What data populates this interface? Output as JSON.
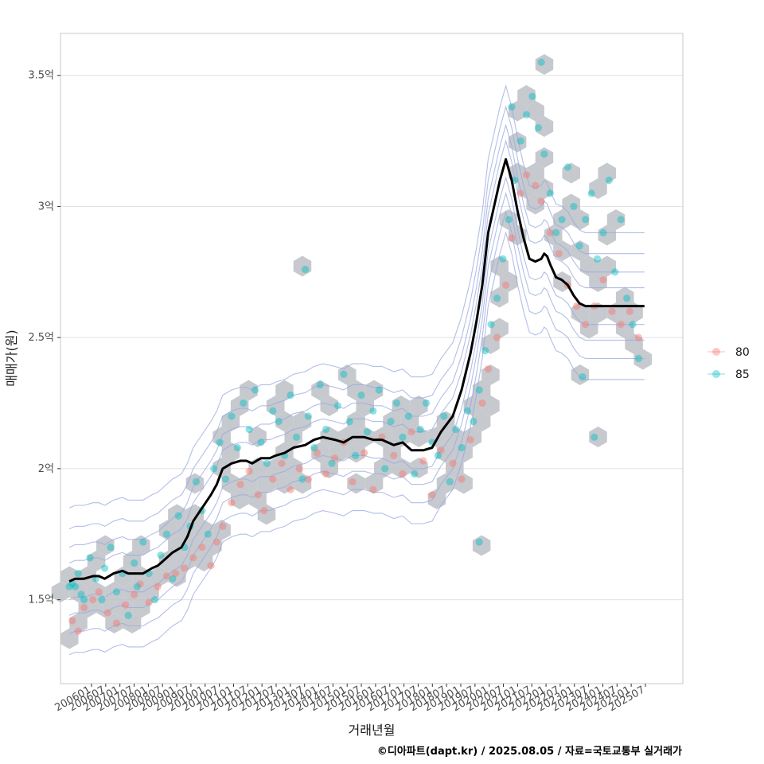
{
  "chart_data": {
    "type": "scatter",
    "title": "",
    "xlabel": "거래년월",
    "ylabel": "매매가(원)",
    "caption": "©디아파트(dapt.kr) / 2025.08.05 / 자료=국토교통부 실거래가",
    "x_range": [
      2005.7,
      2026.8
    ],
    "ylim": [
      1.18,
      3.66
    ],
    "y_ticks": [
      1.5,
      2.0,
      2.5,
      3.0,
      3.5
    ],
    "y_tick_labels": [
      "1.5억",
      "2억",
      "2.5억",
      "3억",
      "3.5억"
    ],
    "x_tick_labels": [
      "200601",
      "200607",
      "200701",
      "200707",
      "200801",
      "200807",
      "200901",
      "200907",
      "201001",
      "201007",
      "201101",
      "201107",
      "201201",
      "201207",
      "201301",
      "201307",
      "201401",
      "201407",
      "201501",
      "201507",
      "201601",
      "201607",
      "201701",
      "201707",
      "201801",
      "201807",
      "201901",
      "201907",
      "202001",
      "202007",
      "202101",
      "202107",
      "202201",
      "202207",
      "202301",
      "202307",
      "202401",
      "202407",
      "202501",
      "202507"
    ],
    "legend": {
      "position": "right",
      "entries": [
        {
          "label": "80",
          "color": "#F8766D"
        },
        {
          "label": "85",
          "color": "#00BFC4"
        }
      ]
    },
    "colors": {
      "hex": "#BCC0C6",
      "contour": "#9AA8E0",
      "trend": "#000000",
      "grid": "#E0E0E0",
      "panel_border": "#C8C8C8"
    },
    "trend_line": {
      "name": "moving average",
      "x": [
        2006.0,
        2006.2,
        2006.5,
        2006.8,
        2007.0,
        2007.2,
        2007.5,
        2007.8,
        2008.0,
        2008.2,
        2008.5,
        2008.8,
        2009.0,
        2009.2,
        2009.5,
        2009.8,
        2010.0,
        2010.2,
        2010.5,
        2010.8,
        2011.0,
        2011.2,
        2011.5,
        2011.8,
        2012.0,
        2012.2,
        2012.5,
        2012.8,
        2013.0,
        2013.3,
        2013.6,
        2014.0,
        2014.3,
        2014.6,
        2015.0,
        2015.3,
        2015.6,
        2016.0,
        2016.3,
        2016.6,
        2017.0,
        2017.3,
        2017.6,
        2018.0,
        2018.3,
        2018.6,
        2019.0,
        2019.3,
        2019.6,
        2019.8,
        2020.0,
        2020.2,
        2020.4,
        2020.6,
        2020.8,
        2021.0,
        2021.2,
        2021.4,
        2021.6,
        2021.8,
        2022.0,
        2022.1,
        2022.2,
        2022.3,
        2022.5,
        2022.7,
        2022.9,
        2023.1,
        2023.3,
        2023.5,
        2023.7,
        2023.9,
        2024.1,
        2024.3,
        2024.5,
        2024.7,
        2024.9,
        2025.1,
        2025.3,
        2025.5
      ],
      "y": [
        1.57,
        1.58,
        1.58,
        1.59,
        1.59,
        1.58,
        1.6,
        1.61,
        1.6,
        1.6,
        1.6,
        1.62,
        1.63,
        1.65,
        1.68,
        1.7,
        1.74,
        1.8,
        1.85,
        1.9,
        1.94,
        2.0,
        2.02,
        2.03,
        2.03,
        2.02,
        2.04,
        2.04,
        2.05,
        2.06,
        2.08,
        2.09,
        2.11,
        2.12,
        2.11,
        2.1,
        2.12,
        2.12,
        2.11,
        2.11,
        2.09,
        2.1,
        2.07,
        2.07,
        2.08,
        2.14,
        2.2,
        2.3,
        2.44,
        2.56,
        2.7,
        2.9,
        3.0,
        3.1,
        3.18,
        3.1,
        2.98,
        2.88,
        2.8,
        2.79,
        2.8,
        2.82,
        2.81,
        2.78,
        2.73,
        2.72,
        2.7,
        2.66,
        2.63,
        2.62,
        2.62,
        2.62,
        2.62,
        2.62,
        2.62,
        2.62,
        2.62,
        2.62,
        2.62,
        2.62
      ]
    },
    "series": [
      {
        "name": "80",
        "points": [
          [
            2006.1,
            1.42
          ],
          [
            2006.3,
            1.38
          ],
          [
            2006.5,
            1.47
          ],
          [
            2006.8,
            1.5
          ],
          [
            2007.0,
            1.53
          ],
          [
            2007.3,
            1.45
          ],
          [
            2007.6,
            1.41
          ],
          [
            2007.9,
            1.48
          ],
          [
            2008.2,
            1.52
          ],
          [
            2008.4,
            1.56
          ],
          [
            2008.7,
            1.49
          ],
          [
            2009.0,
            1.55
          ],
          [
            2009.3,
            1.59
          ],
          [
            2009.6,
            1.6
          ],
          [
            2009.9,
            1.62
          ],
          [
            2010.2,
            1.66
          ],
          [
            2010.5,
            1.7
          ],
          [
            2010.8,
            1.63
          ],
          [
            2011.0,
            1.72
          ],
          [
            2011.2,
            1.78
          ],
          [
            2011.5,
            1.87
          ],
          [
            2011.8,
            1.94
          ],
          [
            2012.1,
            1.99
          ],
          [
            2012.4,
            1.9
          ],
          [
            2012.6,
            1.84
          ],
          [
            2012.9,
            1.96
          ],
          [
            2013.2,
            2.02
          ],
          [
            2013.5,
            1.92
          ],
          [
            2013.8,
            2.0
          ],
          [
            2014.1,
            1.96
          ],
          [
            2014.4,
            2.06
          ],
          [
            2014.7,
            1.98
          ],
          [
            2015.0,
            2.04
          ],
          [
            2015.3,
            2.1
          ],
          [
            2015.6,
            1.95
          ],
          [
            2016.0,
            2.06
          ],
          [
            2016.3,
            1.92
          ],
          [
            2016.6,
            2.12
          ],
          [
            2017.0,
            2.05
          ],
          [
            2017.3,
            1.98
          ],
          [
            2017.6,
            2.14
          ],
          [
            2018.0,
            2.03
          ],
          [
            2018.3,
            1.9
          ],
          [
            2018.6,
            2.07
          ],
          [
            2019.0,
            2.02
          ],
          [
            2019.3,
            1.96
          ],
          [
            2019.6,
            2.11
          ],
          [
            2020.0,
            2.25
          ],
          [
            2020.2,
            2.38
          ],
          [
            2020.5,
            2.5
          ],
          [
            2020.8,
            2.7
          ],
          [
            2021.0,
            2.88
          ],
          [
            2021.3,
            3.05
          ],
          [
            2021.5,
            3.12
          ],
          [
            2021.8,
            3.08
          ],
          [
            2022.0,
            3.02
          ],
          [
            2022.3,
            2.9
          ],
          [
            2022.6,
            2.82
          ],
          [
            2022.9,
            2.7
          ],
          [
            2023.2,
            2.62
          ],
          [
            2023.5,
            2.55
          ],
          [
            2023.8,
            2.62
          ],
          [
            2024.1,
            2.72
          ],
          [
            2024.4,
            2.6
          ],
          [
            2024.7,
            2.55
          ],
          [
            2025.0,
            2.6
          ],
          [
            2025.3,
            2.5
          ]
        ]
      },
      {
        "name": "85",
        "points": [
          [
            2006.0,
            1.55
          ],
          [
            2006.1,
            1.56
          ],
          [
            2006.2,
            1.55
          ],
          [
            2006.3,
            1.6
          ],
          [
            2006.4,
            1.52
          ],
          [
            2006.5,
            1.5
          ],
          [
            2006.7,
            1.66
          ],
          [
            2006.9,
            1.58
          ],
          [
            2007.1,
            1.5
          ],
          [
            2007.2,
            1.62
          ],
          [
            2007.4,
            1.7
          ],
          [
            2007.6,
            1.53
          ],
          [
            2007.8,
            1.6
          ],
          [
            2008.0,
            1.44
          ],
          [
            2008.2,
            1.64
          ],
          [
            2008.3,
            1.55
          ],
          [
            2008.5,
            1.72
          ],
          [
            2008.7,
            1.6
          ],
          [
            2008.9,
            1.5
          ],
          [
            2009.1,
            1.67
          ],
          [
            2009.3,
            1.75
          ],
          [
            2009.5,
            1.58
          ],
          [
            2009.7,
            1.82
          ],
          [
            2009.9,
            1.7
          ],
          [
            2010.1,
            1.78
          ],
          [
            2010.3,
            1.95
          ],
          [
            2010.5,
            1.84
          ],
          [
            2010.7,
            1.75
          ],
          [
            2010.9,
            2.0
          ],
          [
            2011.1,
            2.1
          ],
          [
            2011.3,
            1.96
          ],
          [
            2011.5,
            2.2
          ],
          [
            2011.7,
            2.08
          ],
          [
            2011.9,
            2.25
          ],
          [
            2012.1,
            2.15
          ],
          [
            2012.3,
            2.3
          ],
          [
            2012.5,
            2.1
          ],
          [
            2012.7,
            2.02
          ],
          [
            2012.9,
            2.22
          ],
          [
            2013.1,
            2.18
          ],
          [
            2013.3,
            2.05
          ],
          [
            2013.5,
            2.28
          ],
          [
            2013.7,
            2.12
          ],
          [
            2013.9,
            1.96
          ],
          [
            2014.1,
            2.2
          ],
          [
            2014.3,
            2.08
          ],
          [
            2014.5,
            2.32
          ],
          [
            2014.7,
            2.15
          ],
          [
            2014.9,
            2.02
          ],
          [
            2015.1,
            2.24
          ],
          [
            2015.3,
            2.36
          ],
          [
            2015.5,
            2.18
          ],
          [
            2015.7,
            2.05
          ],
          [
            2015.9,
            2.28
          ],
          [
            2016.1,
            2.14
          ],
          [
            2016.3,
            2.22
          ],
          [
            2016.5,
            2.3
          ],
          [
            2016.7,
            2.0
          ],
          [
            2016.9,
            2.18
          ],
          [
            2017.1,
            2.25
          ],
          [
            2017.3,
            2.12
          ],
          [
            2017.5,
            2.2
          ],
          [
            2017.7,
            1.98
          ],
          [
            2017.9,
            2.15
          ],
          [
            2018.1,
            2.25
          ],
          [
            2018.3,
            2.1
          ],
          [
            2018.5,
            2.05
          ],
          [
            2018.7,
            2.2
          ],
          [
            2018.9,
            1.95
          ],
          [
            2019.1,
            2.15
          ],
          [
            2019.3,
            2.08
          ],
          [
            2019.5,
            2.22
          ],
          [
            2019.7,
            2.18
          ],
          [
            2019.9,
            2.3
          ],
          [
            2020.1,
            2.45
          ],
          [
            2020.3,
            2.55
          ],
          [
            2020.5,
            2.65
          ],
          [
            2020.7,
            2.8
          ],
          [
            2020.9,
            2.95
          ],
          [
            2021.1,
            3.1
          ],
          [
            2021.3,
            3.25
          ],
          [
            2021.5,
            3.35
          ],
          [
            2021.7,
            3.42
          ],
          [
            2021.9,
            3.3
          ],
          [
            2022.1,
            3.2
          ],
          [
            2022.3,
            3.05
          ],
          [
            2022.5,
            2.9
          ],
          [
            2022.7,
            2.95
          ],
          [
            2022.9,
            3.15
          ],
          [
            2023.1,
            3.0
          ],
          [
            2023.3,
            2.85
          ],
          [
            2023.5,
            2.95
          ],
          [
            2023.7,
            3.05
          ],
          [
            2023.9,
            2.8
          ],
          [
            2024.1,
            2.9
          ],
          [
            2024.3,
            3.1
          ],
          [
            2024.5,
            2.75
          ],
          [
            2024.7,
            2.95
          ],
          [
            2024.9,
            2.65
          ],
          [
            2025.1,
            2.55
          ],
          [
            2025.3,
            2.42
          ],
          [
            2014.0,
            2.76
          ],
          [
            2021.0,
            3.38
          ],
          [
            2022.0,
            3.55
          ],
          [
            2023.4,
            2.35
          ],
          [
            2023.8,
            2.12
          ],
          [
            2019.9,
            1.72
          ]
        ]
      }
    ]
  }
}
